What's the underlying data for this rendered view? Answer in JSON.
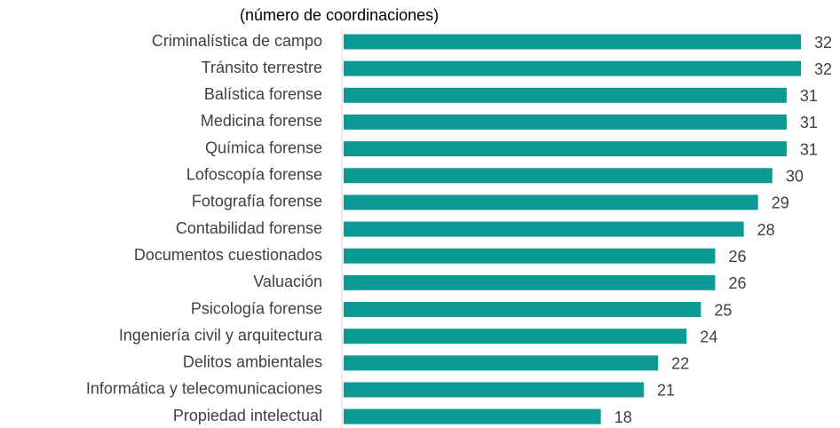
{
  "chart_data": {
    "type": "bar",
    "orientation": "horizontal",
    "subtitle": "(número de coordinaciones)",
    "categories": [
      "Criminalística de campo",
      "Tránsito terrestre",
      "Balística forense",
      "Medicina forense",
      "Química forense",
      "Lofoscopía forense",
      "Fotografía forense",
      "Contabilidad forense",
      "Documentos cuestionados",
      "Valuación",
      "Psicología forense",
      "Ingeniería civil y arquitectura",
      "Delitos ambientales",
      "Informática y telecomunicaciones",
      "Propiedad intelectual"
    ],
    "values": [
      32,
      32,
      31,
      31,
      31,
      30,
      29,
      28,
      26,
      26,
      25,
      24,
      22,
      21,
      18
    ],
    "color": "#0e9a94",
    "xlim": [
      0,
      32
    ]
  }
}
